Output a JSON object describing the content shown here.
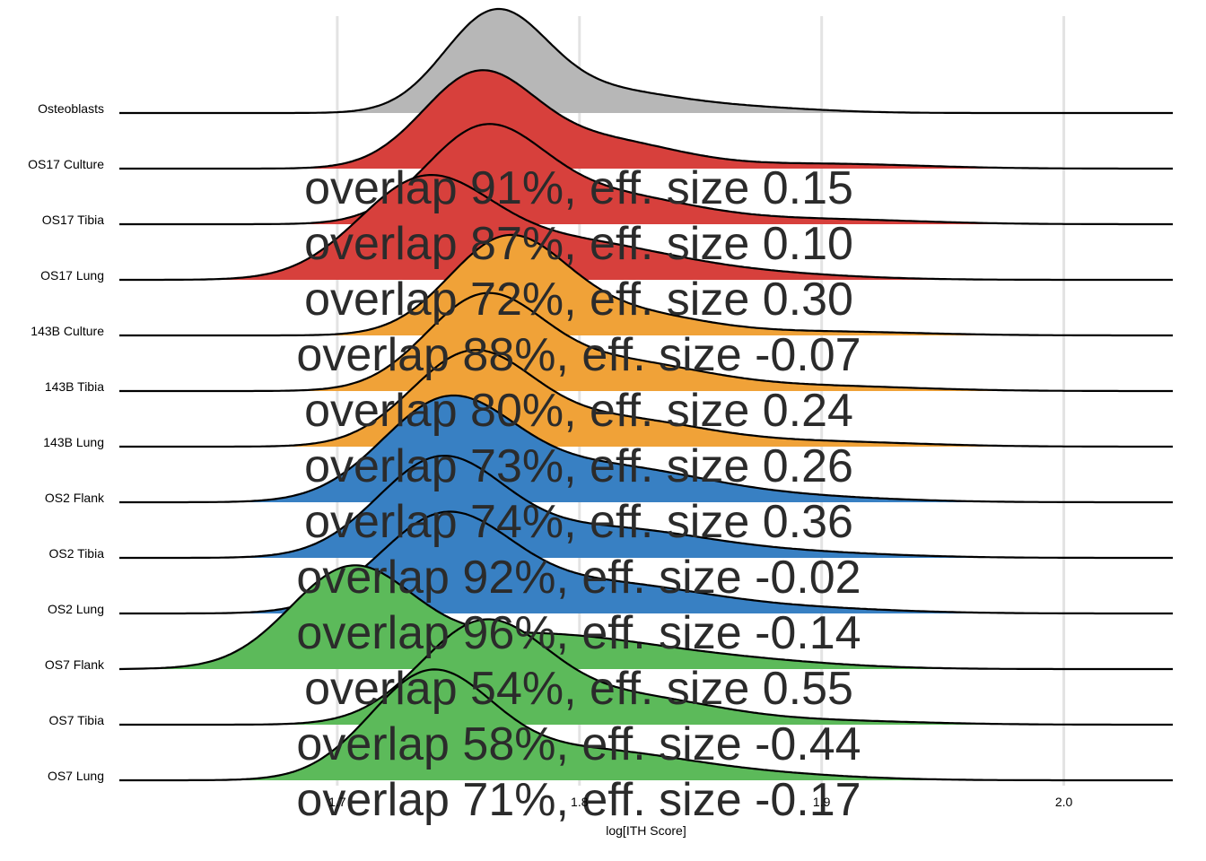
{
  "chart_data": {
    "type": "ridgeline",
    "xlabel": "log[ITH Score]",
    "x_ticks": [
      1.7,
      1.8,
      1.9,
      2.0
    ],
    "xlim": [
      1.61,
      2.045
    ],
    "grid": true,
    "colors": {
      "Osteoblasts": "#b7b7b7",
      "OS17": "#d7403c",
      "143B": "#f0a238",
      "OS2": "#3880c3",
      "OS7": "#5cba5a"
    },
    "series": [
      {
        "name": "Osteoblasts",
        "group": "Osteoblasts",
        "range": [
          1.61,
          2.045
        ],
        "peaks": [
          {
            "x": 1.765,
            "h": 1.0,
            "sd": 0.021
          },
          {
            "x": 1.81,
            "h": 0.22,
            "sd": 0.03
          },
          {
            "x": 1.87,
            "h": 0.05,
            "sd": 0.03
          }
        ],
        "annotation": ""
      },
      {
        "name": "OS17 Culture",
        "group": "OS17",
        "range": [
          1.62,
          2.045
        ],
        "peaks": [
          {
            "x": 1.758,
            "h": 0.95,
            "sd": 0.023
          },
          {
            "x": 1.81,
            "h": 0.28,
            "sd": 0.03
          },
          {
            "x": 1.9,
            "h": 0.05,
            "sd": 0.04
          }
        ],
        "annotation": "overlap 91%, eff. size 0.15"
      },
      {
        "name": "OS17 Tibia",
        "group": "OS17",
        "range": [
          1.62,
          2.045
        ],
        "peaks": [
          {
            "x": 1.76,
            "h": 0.92,
            "sd": 0.024
          },
          {
            "x": 1.81,
            "h": 0.3,
            "sd": 0.035
          },
          {
            "x": 1.9,
            "h": 0.05,
            "sd": 0.04
          }
        ],
        "annotation": "overlap 87%, eff. size 0.10"
      },
      {
        "name": "OS17 Lung",
        "group": "OS17",
        "range": [
          1.62,
          2.045
        ],
        "peaks": [
          {
            "x": 1.735,
            "h": 0.95,
            "sd": 0.027
          },
          {
            "x": 1.795,
            "h": 0.38,
            "sd": 0.04
          },
          {
            "x": 1.87,
            "h": 0.06,
            "sd": 0.04
          }
        ],
        "annotation": "overlap 72%, eff. size 0.30"
      },
      {
        "name": "143B Culture",
        "group": "143B",
        "range": [
          1.62,
          2.045
        ],
        "peaks": [
          {
            "x": 1.77,
            "h": 0.98,
            "sd": 0.024
          },
          {
            "x": 1.82,
            "h": 0.22,
            "sd": 0.03
          },
          {
            "x": 1.9,
            "h": 0.04,
            "sd": 0.04
          }
        ],
        "annotation": "overlap 88%, eff. size -0.07"
      },
      {
        "name": "143B Tibia",
        "group": "143B",
        "range": [
          1.62,
          2.045
        ],
        "peaks": [
          {
            "x": 1.76,
            "h": 0.92,
            "sd": 0.024
          },
          {
            "x": 1.815,
            "h": 0.3,
            "sd": 0.035
          },
          {
            "x": 1.9,
            "h": 0.05,
            "sd": 0.04
          }
        ],
        "annotation": "overlap 80%, eff. size 0.24"
      },
      {
        "name": "143B Lung",
        "group": "143B",
        "range": [
          1.62,
          2.045
        ],
        "peaks": [
          {
            "x": 1.755,
            "h": 0.93,
            "sd": 0.025
          },
          {
            "x": 1.815,
            "h": 0.28,
            "sd": 0.035
          },
          {
            "x": 1.9,
            "h": 0.05,
            "sd": 0.04
          }
        ],
        "annotation": "overlap 73%, eff. size 0.26"
      },
      {
        "name": "OS2 Flank",
        "group": "OS2",
        "range": [
          1.62,
          2.045
        ],
        "peaks": [
          {
            "x": 1.745,
            "h": 1.0,
            "sd": 0.027
          },
          {
            "x": 1.81,
            "h": 0.36,
            "sd": 0.04
          },
          {
            "x": 1.89,
            "h": 0.05,
            "sd": 0.04
          }
        ],
        "annotation": "overlap 74%, eff. size 0.36"
      },
      {
        "name": "OS2 Tibia",
        "group": "OS2",
        "range": [
          1.62,
          2.045
        ],
        "peaks": [
          {
            "x": 1.742,
            "h": 0.98,
            "sd": 0.026
          },
          {
            "x": 1.81,
            "h": 0.3,
            "sd": 0.04
          },
          {
            "x": 1.89,
            "h": 0.05,
            "sd": 0.04
          }
        ],
        "annotation": "overlap 92%, eff. size -0.02"
      },
      {
        "name": "OS2 Lung",
        "group": "OS2",
        "range": [
          1.62,
          2.045
        ],
        "peaks": [
          {
            "x": 1.744,
            "h": 0.97,
            "sd": 0.027
          },
          {
            "x": 1.81,
            "h": 0.3,
            "sd": 0.04
          },
          {
            "x": 1.89,
            "h": 0.05,
            "sd": 0.04
          }
        ],
        "annotation": "overlap 96%, eff. size -0.14"
      },
      {
        "name": "OS7 Flank",
        "group": "OS7",
        "range": [
          1.62,
          2.045
        ],
        "peaks": [
          {
            "x": 1.705,
            "h": 0.95,
            "sd": 0.025
          },
          {
            "x": 1.78,
            "h": 0.36,
            "sd": 0.05
          },
          {
            "x": 1.87,
            "h": 0.06,
            "sd": 0.04
          }
        ],
        "annotation": "overlap 54%, eff. size 0.55"
      },
      {
        "name": "OS7 Tibia",
        "group": "OS7",
        "range": [
          1.62,
          2.045
        ],
        "peaks": [
          {
            "x": 1.76,
            "h": 1.02,
            "sd": 0.026
          },
          {
            "x": 1.82,
            "h": 0.28,
            "sd": 0.035
          },
          {
            "x": 1.9,
            "h": 0.04,
            "sd": 0.04
          }
        ],
        "annotation": "overlap 58%, eff. size -0.44"
      },
      {
        "name": "OS7 Lung",
        "group": "OS7",
        "range": [
          1.62,
          2.045
        ],
        "peaks": [
          {
            "x": 1.738,
            "h": 1.05,
            "sd": 0.025
          },
          {
            "x": 1.8,
            "h": 0.3,
            "sd": 0.04
          },
          {
            "x": 1.87,
            "h": 0.06,
            "sd": 0.04
          }
        ],
        "annotation": "overlap 71%, eff. size -0.17"
      }
    ]
  }
}
